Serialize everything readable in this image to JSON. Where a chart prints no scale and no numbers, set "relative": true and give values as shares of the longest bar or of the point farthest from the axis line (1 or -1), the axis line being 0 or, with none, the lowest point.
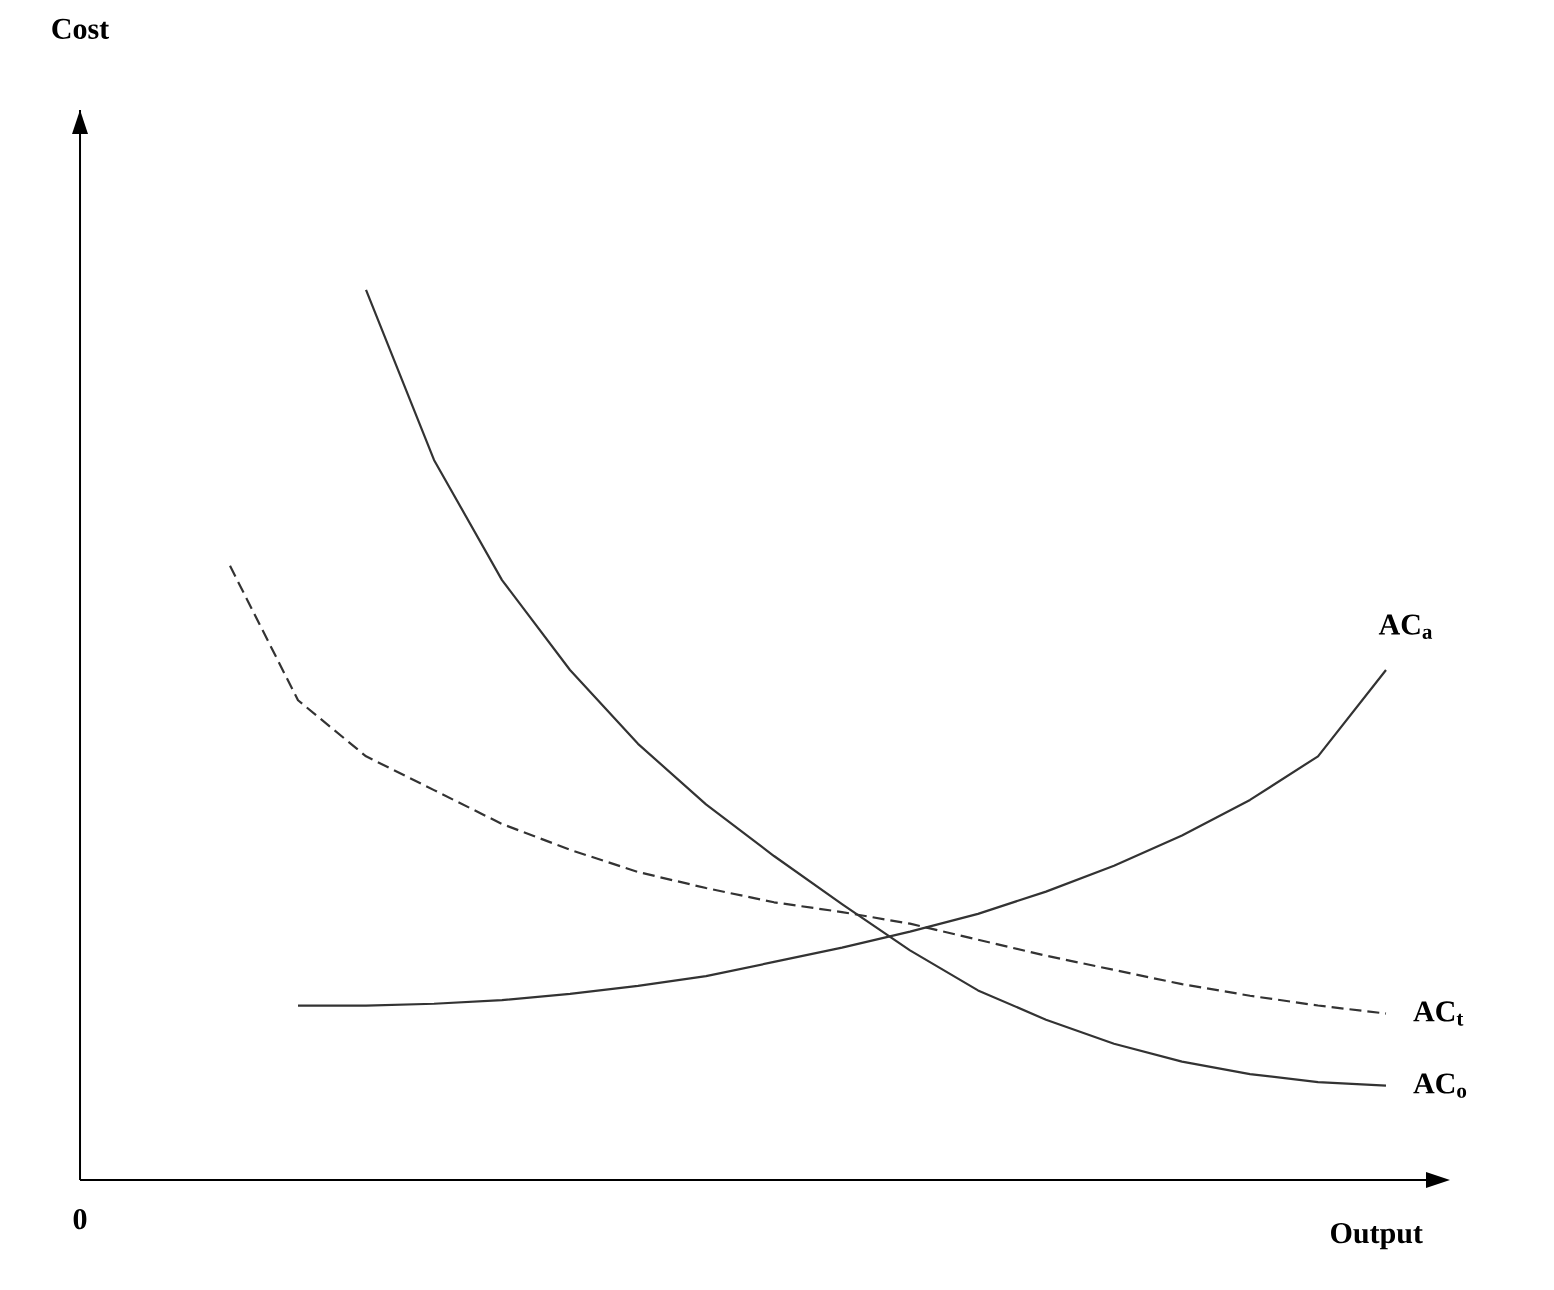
{
  "chart_data": {
    "type": "line",
    "relative": true,
    "xlabel": "Output",
    "annotations": [
      "Cost",
      "0"
    ],
    "legend": false,
    "marker": "none",
    "categories": [
      null,
      null,
      null,
      null,
      null,
      null,
      null,
      null,
      null,
      null,
      null,
      null,
      null,
      null,
      null,
      null,
      null,
      null
    ],
    "series": [
      {
        "name": "AC$_{a}$",
        "color": "#333333",
        "line_style": "solid",
        "values": [
          null,
          0.196,
          0.196,
          0.198,
          0.202,
          0.209,
          0.218,
          0.229,
          0.245,
          0.261,
          0.279,
          0.299,
          0.324,
          0.353,
          0.387,
          0.427,
          0.476,
          0.573
        ]
      },
      {
        "name": "AC$_{t}$",
        "color": "#333333",
        "line_style": "dashed",
        "values": [
          0.69,
          0.539,
          0.476,
          0.438,
          0.4,
          0.371,
          0.346,
          0.328,
          0.312,
          0.301,
          0.288,
          0.27,
          0.252,
          0.236,
          0.22,
          0.207,
          0.196,
          0.187
        ]
      },
      {
        "name": "AC$_{o}$",
        "color": "#333333",
        "line_style": "solid",
        "values": [
          null,
          null,
          1.0,
          0.809,
          0.674,
          0.573,
          0.49,
          0.422,
          0.364,
          0.31,
          0.258,
          0.213,
          0.18,
          0.153,
          0.133,
          0.119,
          0.11,
          0.106
        ]
      }
    ]
  }
}
